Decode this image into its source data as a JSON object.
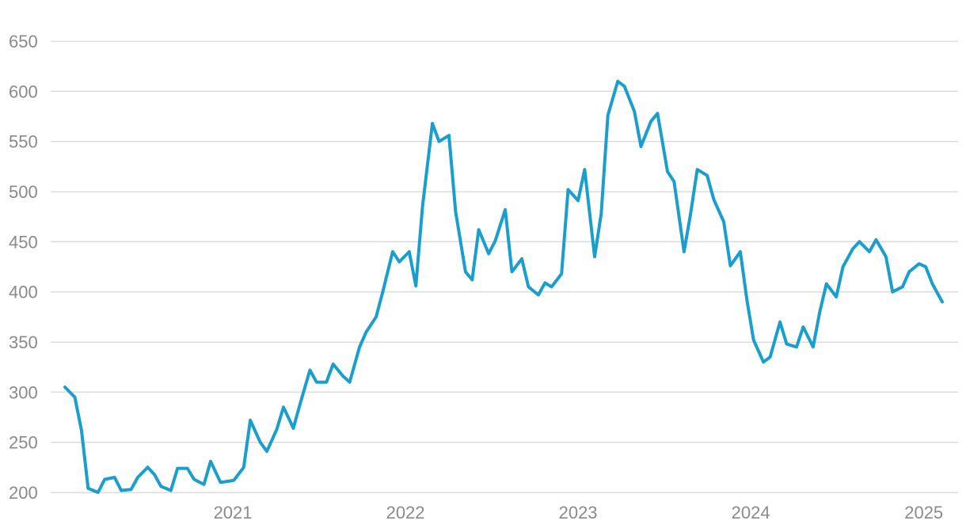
{
  "chart_data": {
    "type": "line",
    "title": "",
    "xlabel": "",
    "ylabel": "",
    "ylim": [
      200,
      675
    ],
    "xlim": [
      "2020-01-12",
      "2025-02-09"
    ],
    "grid": true,
    "series_color": "#1a9ece",
    "y_ticks": [
      200,
      250,
      300,
      350,
      400,
      450,
      500,
      550,
      600,
      650
    ],
    "y_tick_labels": [
      "200",
      "250",
      "300",
      "350",
      "400",
      "450",
      "500",
      "550",
      "600",
      "650"
    ],
    "x_ticks": [
      "2021-01-01",
      "2022-01-01",
      "2023-01-01",
      "2024-01-01",
      "2025-01-01"
    ],
    "x_tick_labels": [
      "2021",
      "2022",
      "2023",
      "2024",
      "2025"
    ],
    "series": [
      {
        "points": [
          [
            "2020-01-12",
            305
          ],
          [
            "2020-02-02",
            295
          ],
          [
            "2020-02-16",
            262
          ],
          [
            "2020-03-01",
            204
          ],
          [
            "2020-03-22",
            200
          ],
          [
            "2020-04-05",
            213
          ],
          [
            "2020-04-26",
            215
          ],
          [
            "2020-05-10",
            202
          ],
          [
            "2020-05-31",
            203
          ],
          [
            "2020-06-14",
            215
          ],
          [
            "2020-07-05",
            225
          ],
          [
            "2020-07-19",
            218
          ],
          [
            "2020-08-02",
            206
          ],
          [
            "2020-08-23",
            202
          ],
          [
            "2020-09-06",
            224
          ],
          [
            "2020-09-27",
            224
          ],
          [
            "2020-10-11",
            213
          ],
          [
            "2020-11-01",
            208
          ],
          [
            "2020-11-15",
            231
          ],
          [
            "2020-12-06",
            210
          ],
          [
            "2020-12-20",
            211
          ],
          [
            "2021-01-03",
            212
          ],
          [
            "2021-01-24",
            225
          ],
          [
            "2021-02-07",
            272
          ],
          [
            "2021-02-28",
            250
          ],
          [
            "2021-03-14",
            241
          ],
          [
            "2021-04-04",
            263
          ],
          [
            "2021-04-18",
            285
          ],
          [
            "2021-05-09",
            264
          ],
          [
            "2021-05-23",
            288
          ],
          [
            "2021-06-13",
            322
          ],
          [
            "2021-06-27",
            310
          ],
          [
            "2021-07-18",
            310
          ],
          [
            "2021-08-01",
            328
          ],
          [
            "2021-08-22",
            316
          ],
          [
            "2021-09-05",
            310
          ],
          [
            "2021-09-26",
            345
          ],
          [
            "2021-10-10",
            360
          ],
          [
            "2021-10-31",
            375
          ],
          [
            "2021-11-14",
            400
          ],
          [
            "2021-12-05",
            440
          ],
          [
            "2021-12-19",
            430
          ],
          [
            "2022-01-09",
            440
          ],
          [
            "2022-01-23",
            406
          ],
          [
            "2022-02-06",
            485
          ],
          [
            "2022-02-27",
            568
          ],
          [
            "2022-03-13",
            550
          ],
          [
            "2022-04-03",
            556
          ],
          [
            "2022-04-17",
            480
          ],
          [
            "2022-05-08",
            420
          ],
          [
            "2022-05-22",
            412
          ],
          [
            "2022-06-05",
            462
          ],
          [
            "2022-06-26",
            438
          ],
          [
            "2022-07-10",
            451
          ],
          [
            "2022-07-31",
            482
          ],
          [
            "2022-08-14",
            420
          ],
          [
            "2022-09-04",
            433
          ],
          [
            "2022-09-18",
            405
          ],
          [
            "2022-10-09",
            397
          ],
          [
            "2022-10-23",
            409
          ],
          [
            "2022-11-06",
            405
          ],
          [
            "2022-11-27",
            418
          ],
          [
            "2022-12-11",
            502
          ],
          [
            "2023-01-01",
            491
          ],
          [
            "2023-01-15",
            522
          ],
          [
            "2023-02-05",
            435
          ],
          [
            "2023-02-19",
            478
          ],
          [
            "2023-03-05",
            576
          ],
          [
            "2023-03-26",
            610
          ],
          [
            "2023-04-09",
            605
          ],
          [
            "2023-04-30",
            580
          ],
          [
            "2023-05-14",
            545
          ],
          [
            "2023-06-04",
            570
          ],
          [
            "2023-06-18",
            578
          ],
          [
            "2023-07-09",
            520
          ],
          [
            "2023-07-23",
            510
          ],
          [
            "2023-08-13",
            440
          ],
          [
            "2023-08-27",
            478
          ],
          [
            "2023-09-10",
            522
          ],
          [
            "2023-10-01",
            516
          ],
          [
            "2023-10-15",
            492
          ],
          [
            "2023-11-05",
            470
          ],
          [
            "2023-11-19",
            426
          ],
          [
            "2023-12-10",
            440
          ],
          [
            "2023-12-24",
            392
          ],
          [
            "2024-01-07",
            352
          ],
          [
            "2024-01-28",
            330
          ],
          [
            "2024-02-11",
            335
          ],
          [
            "2024-03-03",
            370
          ],
          [
            "2024-03-17",
            348
          ],
          [
            "2024-04-07",
            345
          ],
          [
            "2024-04-21",
            365
          ],
          [
            "2024-05-12",
            345
          ],
          [
            "2024-05-26",
            380
          ],
          [
            "2024-06-09",
            408
          ],
          [
            "2024-06-30",
            395
          ],
          [
            "2024-07-14",
            425
          ],
          [
            "2024-08-04",
            443
          ],
          [
            "2024-08-18",
            450
          ],
          [
            "2024-09-08",
            440
          ],
          [
            "2024-09-22",
            452
          ],
          [
            "2024-10-13",
            435
          ],
          [
            "2024-10-27",
            400
          ],
          [
            "2024-11-17",
            405
          ],
          [
            "2024-12-01",
            420
          ],
          [
            "2024-12-22",
            428
          ],
          [
            "2025-01-05",
            425
          ],
          [
            "2025-01-19",
            408
          ],
          [
            "2025-02-09",
            390
          ]
        ]
      }
    ]
  }
}
